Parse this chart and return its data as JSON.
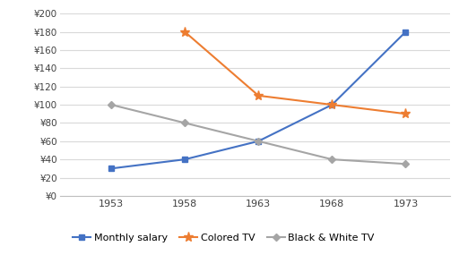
{
  "years": [
    1953,
    1958,
    1963,
    1968,
    1973
  ],
  "monthly_salary": [
    30,
    40,
    60,
    100,
    180
  ],
  "colored_tv": [
    null,
    180,
    110,
    100,
    90
  ],
  "bw_tv": [
    100,
    80,
    60,
    40,
    35
  ],
  "salary_color": "#4472C4",
  "colored_tv_color": "#ED7D31",
  "bw_tv_color": "#A5A5A5",
  "ylim": [
    0,
    200
  ],
  "yticks": [
    0,
    20,
    40,
    60,
    80,
    100,
    120,
    140,
    160,
    180,
    200
  ],
  "xticks": [
    1953,
    1958,
    1963,
    1968,
    1973
  ],
  "legend_labels": [
    "Monthly salary",
    "Colored TV",
    "Black & White TV"
  ],
  "background_color": "#FFFFFF",
  "grid_color": "#D9D9D9"
}
